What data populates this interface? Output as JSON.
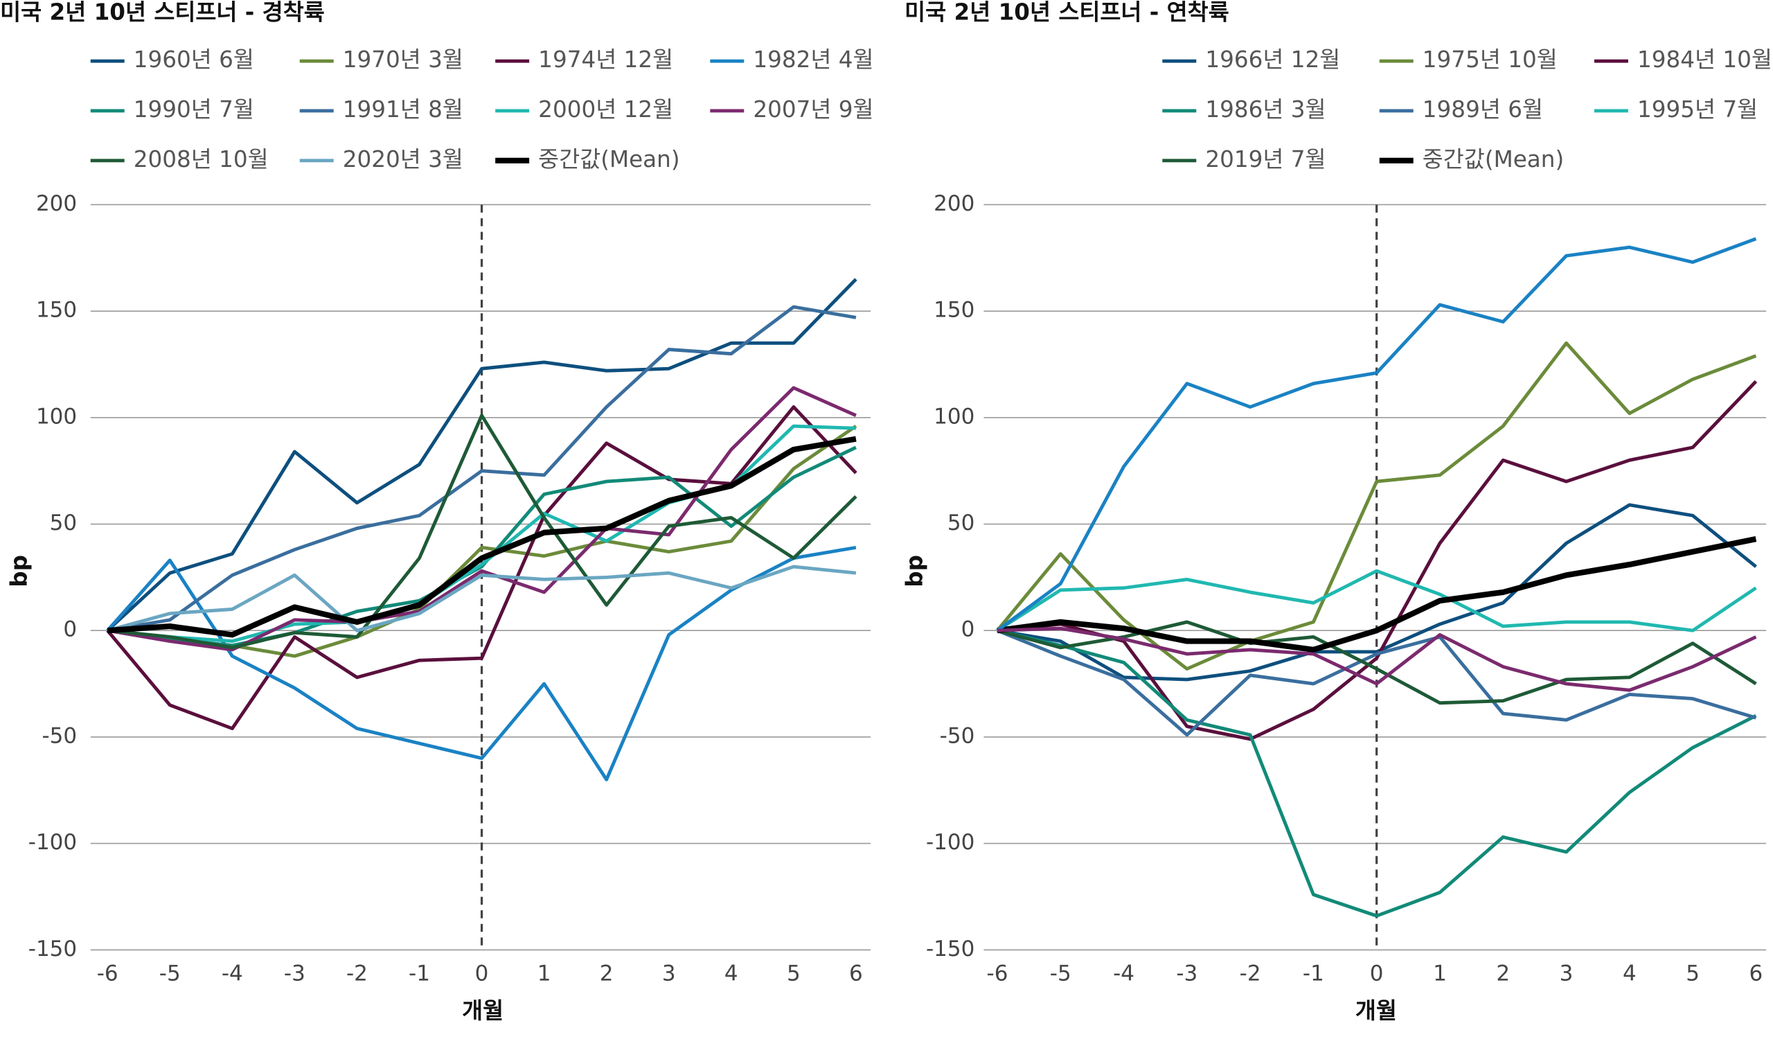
{
  "chart_data": [
    {
      "type": "line",
      "title": "미국 2년 10년 스티프너 - 경착륙",
      "x_label": "개월",
      "y_label": "bp",
      "x": [
        -6,
        -5,
        -4,
        -3,
        -2,
        -1,
        0,
        1,
        2,
        3,
        4,
        5,
        6
      ],
      "xlim": [
        -6,
        6
      ],
      "xticks": [
        -6,
        -5,
        -4,
        -3,
        -2,
        -1,
        0,
        1,
        2,
        3,
        4,
        5,
        6
      ],
      "ylim": [
        -150,
        200
      ],
      "yticks": [
        -150,
        -100,
        -50,
        0,
        50,
        100,
        150,
        200
      ],
      "grid": true,
      "reference_x": 0,
      "series": [
        {
          "name": "1960년 6월",
          "color": "#0d4f7e",
          "values": [
            0,
            27,
            36,
            84,
            60,
            78,
            123,
            126,
            122,
            123,
            135,
            135,
            165
          ]
        },
        {
          "name": "1970년 3월",
          "color": "#6b8b3a",
          "values": [
            0,
            -4,
            -7,
            -12,
            -3,
            10,
            39,
            35,
            42,
            37,
            42,
            76,
            96
          ]
        },
        {
          "name": "1974년 12월",
          "color": "#5a0f3c",
          "values": [
            0,
            -35,
            -46,
            -3,
            -22,
            -14,
            -13,
            54,
            88,
            71,
            69,
            105,
            74
          ]
        },
        {
          "name": "1982년 4월",
          "color": "#1a82c4",
          "values": [
            0,
            33,
            -12,
            -27,
            -46,
            -53,
            -60,
            -25,
            -70,
            -2,
            19,
            34,
            39
          ]
        },
        {
          "name": "1990년 7월",
          "color": "#128a78",
          "values": [
            0,
            -4,
            -7,
            -1,
            9,
            14,
            30,
            64,
            70,
            72,
            49,
            72,
            86
          ]
        },
        {
          "name": "1991년 8월",
          "color": "#3a6e9e",
          "values": [
            0,
            5,
            26,
            38,
            48,
            54,
            75,
            73,
            105,
            132,
            130,
            152,
            147
          ]
        },
        {
          "name": "2000년 12월",
          "color": "#20b8b0",
          "values": [
            0,
            -3,
            -5,
            3,
            4,
            12,
            31,
            55,
            42,
            60,
            68,
            96,
            95
          ]
        },
        {
          "name": "2007년 9월",
          "color": "#7b2a6e",
          "values": [
            0,
            -5,
            -9,
            5,
            4,
            9,
            28,
            18,
            48,
            45,
            85,
            114,
            101
          ]
        },
        {
          "name": "2008년 10월",
          "color": "#1e5a36",
          "values": [
            0,
            -3,
            -8,
            -1,
            -3,
            34,
            101,
            53,
            12,
            49,
            53,
            34,
            63
          ]
        },
        {
          "name": "2020년 3월",
          "color": "#6aa6c2",
          "values": [
            0,
            8,
            10,
            26,
            0,
            8,
            26,
            24,
            25,
            27,
            20,
            30,
            27
          ]
        },
        {
          "name": "중간값(Mean)",
          "color": "#000000",
          "values": [
            0,
            2,
            -2,
            11,
            4,
            12,
            34,
            46,
            48,
            61,
            68,
            85,
            90
          ]
        }
      ]
    },
    {
      "type": "line",
      "title": "미국 2년 10년 스티프너 - 연착륙",
      "x_label": "개월",
      "y_label": "bp",
      "x": [
        -6,
        -5,
        -4,
        -3,
        -2,
        -1,
        0,
        1,
        2,
        3,
        4,
        5,
        6
      ],
      "xlim": [
        -6,
        6
      ],
      "xticks": [
        -6,
        -5,
        -4,
        -3,
        -2,
        -1,
        0,
        1,
        2,
        3,
        4,
        5,
        6
      ],
      "ylim": [
        -150,
        200
      ],
      "yticks": [
        -150,
        -100,
        -50,
        0,
        50,
        100,
        150,
        200
      ],
      "grid": true,
      "reference_x": 0,
      "series": [
        {
          "name": "1966년 12월",
          "color": "#0d4f7e",
          "values": [
            0,
            -5,
            -22,
            -23,
            -19,
            -10,
            -10,
            3,
            13,
            41,
            59,
            54,
            30
          ]
        },
        {
          "name": "1975년 10월",
          "color": "#6b8b3a",
          "values": [
            0,
            36,
            5,
            -18,
            -5,
            4,
            70,
            73,
            96,
            135,
            102,
            118,
            129
          ]
        },
        {
          "name": "1984년 10월",
          "color": "#5a0f3c",
          "values": [
            0,
            3,
            -5,
            -45,
            -51,
            -37,
            -13,
            41,
            80,
            70,
            80,
            86,
            117
          ]
        },
        {
          "name": "1986년 3월",
          "color": "#128a78",
          "values": [
            0,
            -7,
            -15,
            -42,
            -49,
            -124,
            -134,
            -123,
            -97,
            -104,
            -76,
            -55,
            -40
          ]
        },
        {
          "name": "1989년 6월",
          "color": "#3a6e9e",
          "values": [
            0,
            -12,
            -23,
            -49,
            -21,
            -25,
            -11,
            -3,
            -39,
            -42,
            -30,
            -32,
            -41
          ]
        },
        {
          "name": "1995년 7월",
          "color": "#20b8b0",
          "values": [
            0,
            19,
            20,
            24,
            18,
            13,
            28,
            17,
            2,
            4,
            4,
            0,
            20
          ]
        },
        {
          "name": "2019년 7월",
          "color": "#1e5a36",
          "values": [
            0,
            -8,
            -3,
            4,
            -6,
            -3,
            -18,
            -34,
            -33,
            -23,
            -22,
            -6,
            -25
          ]
        },
        {
          "name": "중간값(Mean)",
          "color": "#000000",
          "values": [
            0,
            4,
            1,
            -5,
            -5,
            -9,
            0,
            14,
            18,
            26,
            31,
            37,
            43
          ]
        },
        {
          "color": "#1a82c4",
          "values": [
            0,
            22,
            77,
            116,
            105,
            116,
            121,
            153,
            145,
            176,
            180,
            173,
            184
          ]
        },
        {
          "color": "#7b2a6e",
          "values": [
            0,
            1,
            -4,
            -11,
            -9,
            -11,
            -25,
            -2,
            -17,
            -25,
            -28,
            -17,
            -3
          ]
        }
      ]
    }
  ]
}
